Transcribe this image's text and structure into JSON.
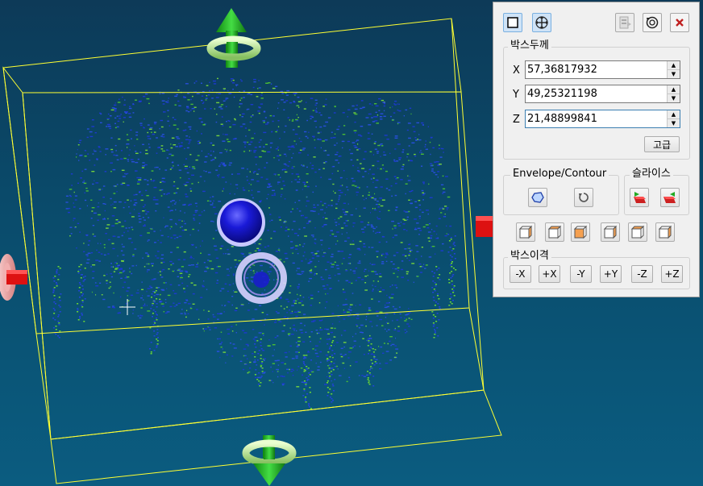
{
  "panel": {
    "toolbar": {
      "box_mode_icon": "square-outline-icon",
      "move_mode_icon": "move-arrows-icon",
      "export_icon": "export-icon",
      "reset_icon": "reset-rotate-icon",
      "close_icon": "close-icon"
    },
    "box_thickness": {
      "title": "박스두께",
      "fields": [
        {
          "axis": "X",
          "value": "57,36817932"
        },
        {
          "axis": "Y",
          "value": "49,25321198"
        },
        {
          "axis": "Z",
          "value": "21,48899841"
        }
      ],
      "advanced_label": "고급"
    },
    "envelope": {
      "title": "Envelope/Contour"
    },
    "slice": {
      "title": "슬라이스"
    },
    "box_move": {
      "title": "박스이격",
      "buttons": [
        "-X",
        "+X",
        "-Y",
        "+Y",
        "-Z",
        "+Z"
      ]
    }
  },
  "colors": {
    "panel_bg": "#f0f0f0",
    "viewport_bg": "#0b5274",
    "box_edge": "#ffff33",
    "handle_green": "#22aa22",
    "handle_red": "#dd1111",
    "points_blue": "#1e38d8",
    "points_green": "#66dd33"
  }
}
